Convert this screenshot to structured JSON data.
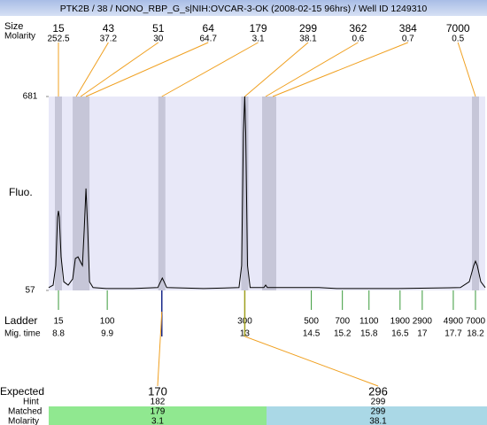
{
  "title": "PTK2B / 38 / NONO_RBP_G_s|NIH:OVCAR-3-OK (2008-02-15 96hrs) / Well ID 1249310",
  "chart_data": {
    "type": "line",
    "size_label": "Size",
    "molarity_label": "Molarity",
    "y_label": "Fluo.",
    "ylim": [
      57,
      681
    ],
    "yticks": [
      57,
      681
    ],
    "xlim": [
      8.58,
      18.42
    ],
    "color": "#000000",
    "x": [
      8.58,
      8.68,
      8.74,
      8.78,
      8.8,
      8.82,
      8.86,
      8.92,
      9.02,
      9.12,
      9.18,
      9.24,
      9.3,
      9.34,
      9.38,
      9.42,
      9.46,
      9.5,
      9.58,
      9.88,
      10.48,
      11.04,
      11.1,
      11.14,
      11.18,
      11.24,
      12.07,
      12.87,
      12.93,
      12.97,
      13.0,
      13.02,
      13.06,
      13.12,
      13.43,
      13.47,
      13.51,
      14.67,
      15.07,
      16.46,
      17.86,
      18.06,
      18.16,
      18.2,
      18.24,
      18.32,
      18.42
    ],
    "values": [
      66,
      74,
      137,
      293,
      313,
      293,
      165,
      85,
      74,
      94,
      160,
      165,
      148,
      137,
      251,
      385,
      251,
      85,
      66,
      63,
      63,
      66,
      85,
      97,
      85,
      66,
      63,
      66,
      137,
      564,
      681,
      564,
      137,
      66,
      66,
      74,
      66,
      66,
      63,
      63,
      66,
      85,
      137,
      151,
      137,
      85,
      66
    ],
    "peaks": [
      {
        "size": 15,
        "molarity": 252.5,
        "time": 8.8
      },
      {
        "size": 43,
        "molarity": 37.2,
        "time": 9.2
      },
      {
        "size": 51,
        "molarity": 30,
        "time": 9.3
      },
      {
        "size": 64,
        "molarity": 64.7,
        "time": 9.42
      },
      {
        "size": 179,
        "molarity": 3.1,
        "time": 11.13
      },
      {
        "size": 299,
        "molarity": 38.1,
        "time": 13.0
      },
      {
        "size": 362,
        "molarity": 0.6,
        "time": 13.47
      },
      {
        "size": 384,
        "molarity": 0.7,
        "time": 13.63
      },
      {
        "size": 7000,
        "molarity": 0.5,
        "time": 18.2
      }
    ],
    "ladder": {
      "label": "Ladder",
      "time_label": "Mig. time",
      "sizes": [
        15,
        100,
        300,
        500,
        700,
        1100,
        1900,
        2900,
        4900,
        7000
      ],
      "times": [
        8.8,
        9.9,
        13,
        14.5,
        15.2,
        15.8,
        16.5,
        17,
        17.7,
        18.2
      ]
    },
    "expected": {
      "expected_label": "Expected",
      "hint_label": "Hint",
      "matched_label": "Matched",
      "molarity_label": "Molarity",
      "columns": [
        {
          "expected": 170,
          "hint": 182,
          "matched": 179,
          "molarity": 3.1
        },
        {
          "expected": 296,
          "hint": 299,
          "matched": 299,
          "molarity": 38.1
        }
      ]
    }
  }
}
